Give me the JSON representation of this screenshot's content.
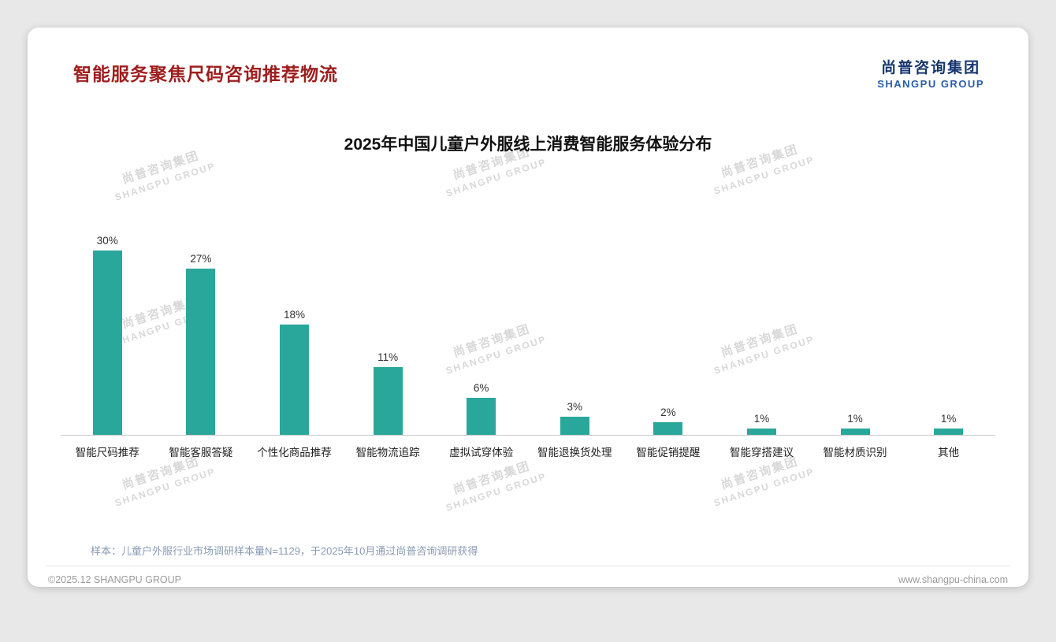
{
  "header": {
    "title": "智能服务聚焦尺码咨询推荐物流"
  },
  "logo": {
    "cn": "尚普咨询集团",
    "en": "SHANGPU GROUP"
  },
  "watermark": {
    "cn": "尚普咨询集团",
    "en": "SHANGPU GROUP"
  },
  "colors": {
    "title_red": "#9e1e1e",
    "bar_teal": "#2aa79b",
    "logo_navy": "#17366e",
    "logo_blue": "#2a5da8"
  },
  "chart_data": {
    "type": "bar",
    "title": "2025年中国儿童户外服线上消费智能服务体验分布",
    "categories": [
      "智能尺码推荐",
      "智能客服答疑",
      "个性化商品推荐",
      "智能物流追踪",
      "虚拟试穿体验",
      "智能退换货处理",
      "智能促销提醒",
      "智能穿搭建议",
      "智能材质识别",
      "其他"
    ],
    "values": [
      30,
      27,
      18,
      11,
      6,
      3,
      2,
      1,
      1,
      1
    ],
    "unit": "%",
    "bar_color": "#2aa79b",
    "xlabel": "",
    "ylabel": "",
    "ylim": [
      0,
      32
    ],
    "grid": false,
    "legend": false
  },
  "footer": {
    "note": "样本：儿童户外服行业市场调研样本量N=1129，于2025年10月通过尚普咨询调研获得",
    "copyright": "©2025.12 SHANGPU GROUP",
    "website": "www.shangpu-china.com"
  }
}
